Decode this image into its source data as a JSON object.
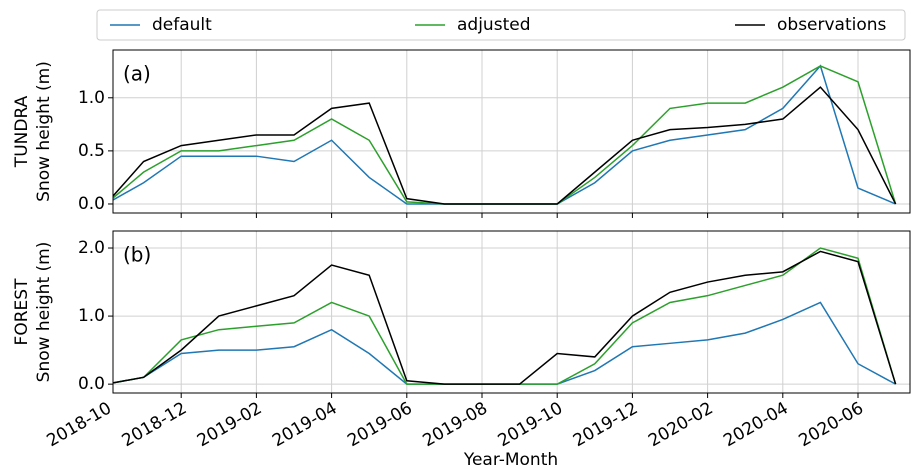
{
  "chart_data": {
    "type": "line",
    "xlabel": "Year-Month",
    "legend": "top",
    "x": [
      "2018-10",
      "2018-11",
      "2018-12",
      "2019-01",
      "2019-02",
      "2019-03",
      "2019-04",
      "2019-05",
      "2019-06",
      "2019-07",
      "2019-08",
      "2019-09",
      "2019-10",
      "2019-11",
      "2019-12",
      "2020-01",
      "2020-02",
      "2020-03",
      "2020-04",
      "2020-05",
      "2020-06",
      "2020-07"
    ],
    "xticks": [
      "2018-10",
      "2018-12",
      "2019-02",
      "2019-04",
      "2019-06",
      "2019-08",
      "2019-10",
      "2019-12",
      "2020-02",
      "2020-04",
      "2020-06"
    ],
    "series": [
      {
        "name": "default",
        "color": "#1f77b4"
      },
      {
        "name": "adjusted",
        "color": "#2ca02c"
      },
      {
        "name": "observations",
        "color": "#000000"
      }
    ],
    "grid": true,
    "panels": [
      {
        "label": "(a)",
        "ylabel": [
          "TUNDRA",
          "Snow height (m)"
        ],
        "ylim": [
          -0.085,
          1.45
        ],
        "yticks": [
          {
            "value": 0,
            "label": "0.0"
          },
          {
            "value": 0.5,
            "label": "0.5"
          },
          {
            "value": 1,
            "label": "1.0"
          }
        ],
        "values": [
          [
            0,
            0.2,
            0.45,
            0.45,
            0.45,
            0.4,
            0.6,
            0.25,
            0,
            0,
            0,
            0,
            0,
            0.2,
            0.5,
            0.6,
            0.65,
            0.7,
            0.9,
            1.3,
            0.15,
            0
          ],
          [
            0,
            0.3,
            0.5,
            0.5,
            0.55,
            0.6,
            0.8,
            0.6,
            0.02,
            0,
            0,
            0,
            0,
            0.25,
            0.55,
            0.9,
            0.95,
            0.95,
            1.1,
            1.3,
            1.15,
            0
          ],
          [
            0,
            0.4,
            0.55,
            0.6,
            0.65,
            0.65,
            0.9,
            0.95,
            0.05,
            0,
            0,
            0,
            0,
            0.3,
            0.6,
            0.7,
            0.72,
            0.75,
            0.8,
            1.1,
            0.7,
            0
          ]
        ]
      },
      {
        "label": "(b)",
        "ylabel": [
          "FOREST",
          "Snow height (m)"
        ],
        "ylim": [
          -0.13,
          2.25
        ],
        "yticks": [
          {
            "value": 0,
            "label": "0.0"
          },
          {
            "value": 1,
            "label": "1.0"
          },
          {
            "value": 2,
            "label": "2.0"
          }
        ],
        "values": [
          [
            0,
            0.1,
            0.45,
            0.5,
            0.5,
            0.55,
            0.8,
            0.45,
            0,
            0,
            0,
            0,
            0,
            0.2,
            0.55,
            0.6,
            0.65,
            0.75,
            0.95,
            1.2,
            0.3,
            0
          ],
          [
            0,
            0.1,
            0.65,
            0.8,
            0.85,
            0.9,
            1.2,
            1.0,
            0,
            0,
            0,
            0,
            0,
            0.3,
            0.9,
            1.2,
            1.3,
            1.45,
            1.6,
            2.0,
            1.85,
            0
          ],
          [
            0,
            0.1,
            0.5,
            1.0,
            1.15,
            1.3,
            1.75,
            1.6,
            0.05,
            0,
            0,
            0,
            0.45,
            0.4,
            1.0,
            1.35,
            1.5,
            1.6,
            1.65,
            1.95,
            1.8,
            0
          ]
        ]
      }
    ]
  }
}
